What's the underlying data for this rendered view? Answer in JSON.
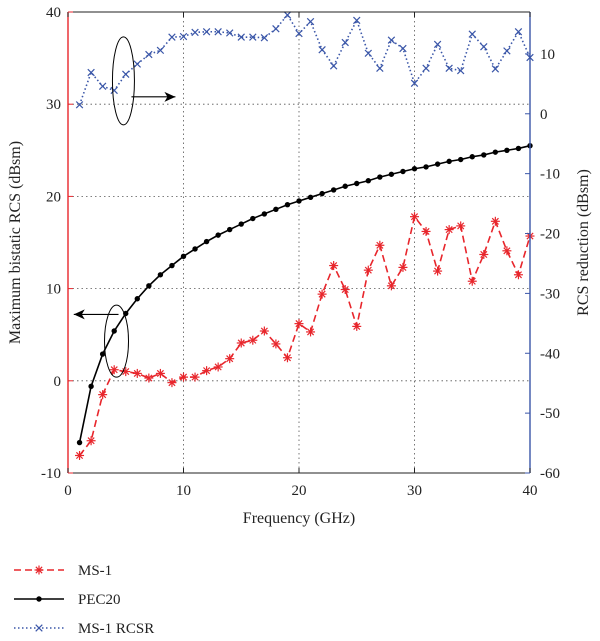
{
  "chart_data": {
    "type": "line",
    "x_axis": {
      "label": "Frequency (GHz)",
      "range": [
        0,
        40
      ],
      "ticks": [
        0,
        10,
        20,
        30,
        40
      ]
    },
    "y_left": {
      "label": "Maximum bistatic RCS (dBsm)",
      "range": [
        -10,
        40
      ],
      "ticks": [
        -10,
        0,
        10,
        20,
        30,
        40
      ],
      "color": "#e8262c"
    },
    "y_right": {
      "label": "RCS reduction (dBsm)",
      "range": [
        -60,
        0
      ],
      "display_range": [
        -60,
        17
      ],
      "ticks": [
        -60,
        -50,
        -40,
        -30,
        -20,
        -10,
        0,
        10
      ],
      "color": "#3a56a8"
    },
    "grid": true,
    "series": [
      {
        "name": "MS-1",
        "axis": "left",
        "style": "dashed",
        "marker": "asterisk",
        "color": "#e8262c",
        "x": [
          1,
          2,
          3,
          4,
          5,
          6,
          7,
          8,
          9,
          10,
          11,
          12,
          13,
          14,
          15,
          16,
          17,
          18,
          19,
          20,
          21,
          22,
          23,
          24,
          25,
          26,
          27,
          28,
          29,
          30,
          31,
          32,
          33,
          34,
          35,
          36,
          37,
          38,
          39,
          40
        ],
        "y": [
          -8.1,
          -6.5,
          -1.5,
          1.2,
          1.0,
          0.8,
          0.3,
          0.8,
          -0.2,
          0.4,
          0.4,
          1.1,
          1.5,
          2.4,
          4.1,
          4.4,
          5.4,
          4.0,
          2.5,
          6.2,
          5.3,
          9.4,
          12.5,
          9.9,
          5.9,
          12.0,
          14.7,
          10.3,
          12.3,
          17.8,
          16.2,
          11.9,
          16.4,
          16.8,
          10.8,
          13.7,
          17.3,
          14.1,
          11.5,
          15.7
        ]
      },
      {
        "name": "PEC20",
        "axis": "left",
        "style": "solid",
        "marker": "dot",
        "color": "#000000",
        "x": [
          1,
          2,
          3,
          4,
          5,
          6,
          7,
          8,
          9,
          10,
          11,
          12,
          13,
          14,
          15,
          16,
          17,
          18,
          19,
          20,
          21,
          22,
          23,
          24,
          25,
          26,
          27,
          28,
          29,
          30,
          31,
          32,
          33,
          34,
          35,
          36,
          37,
          38,
          39,
          40
        ],
        "y": [
          -6.7,
          -0.6,
          2.9,
          5.4,
          7.3,
          8.9,
          10.3,
          11.5,
          12.5,
          13.5,
          14.3,
          15.1,
          15.8,
          16.4,
          17.0,
          17.6,
          18.1,
          18.6,
          19.1,
          19.5,
          19.9,
          20.3,
          20.7,
          21.1,
          21.4,
          21.7,
          22.1,
          22.4,
          22.7,
          23.0,
          23.2,
          23.5,
          23.8,
          24.0,
          24.3,
          24.5,
          24.8,
          25.0,
          25.2,
          25.5
        ]
      },
      {
        "name": "MS-1 RCSR",
        "axis": "right",
        "style": "dotted",
        "marker": "cross",
        "color": "#3a56a8",
        "x": [
          1,
          2,
          3,
          4,
          5,
          6,
          7,
          8,
          9,
          10,
          11,
          12,
          13,
          14,
          15,
          16,
          17,
          18,
          19,
          20,
          21,
          22,
          23,
          24,
          25,
          26,
          27,
          28,
          29,
          30,
          31,
          32,
          33,
          34,
          35,
          36,
          37,
          38,
          39,
          40
        ],
        "y": [
          1.5,
          6.9,
          4.6,
          3.9,
          6.6,
          8.3,
          9.9,
          10.6,
          12.8,
          12.9,
          13.6,
          13.7,
          13.7,
          13.5,
          12.8,
          12.8,
          12.7,
          14.2,
          16.5,
          13.4,
          15.4,
          10.7,
          8.0,
          11.9,
          15.6,
          10.1,
          7.6,
          12.3,
          10.9,
          5.1,
          7.6,
          11.6,
          7.6,
          7.2,
          13.3,
          11.2,
          7.5,
          10.5,
          13.7,
          9.4
        ]
      }
    ],
    "annotations": [
      {
        "type": "ellipse-arrow",
        "target_axis": "right",
        "direction": "right"
      },
      {
        "type": "ellipse-arrow",
        "target_axis": "left",
        "direction": "left"
      }
    ],
    "legend": {
      "position": "bottom-left",
      "entries": [
        "MS-1",
        "PEC20",
        "MS-1 RCSR"
      ]
    }
  }
}
